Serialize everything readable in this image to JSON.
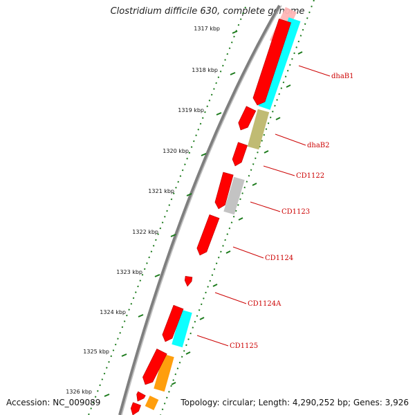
{
  "title": "Clostridium difficile 630, complete genome",
  "footer": {
    "accession": "Accession: NC_009089",
    "topology": "Topology: circular; Length: 4,290,252 bp; Genes: 3,926"
  },
  "colors": {
    "backbone": "#7f7f7f",
    "ticks": "#1b7a1b",
    "label": "#cc0000",
    "red": "#ff0000",
    "cyan": "#00ffff",
    "olive": "#bdb76b",
    "gray": "#c0c0c0",
    "orange": "#ff9900",
    "pink": "#ffb6b6"
  },
  "scale": {
    "unit": "kbp",
    "labels": [
      "1317 kbp",
      "1318 kbp",
      "1319 kbp",
      "1320 kbp",
      "1321 kbp",
      "1322 kbp",
      "1323 kbp",
      "1324 kbp",
      "1325 kbp",
      "1326 kbp"
    ]
  },
  "genes": [
    {
      "name": "dhaB1",
      "color": "cyan"
    },
    {
      "name": "dhaB2",
      "color": "olive"
    },
    {
      "name": "CD1122",
      "color": "red"
    },
    {
      "name": "CD1123",
      "color": "gray"
    },
    {
      "name": "CD1124",
      "color": "red"
    },
    {
      "name": "CD1124A",
      "color": "red"
    },
    {
      "name": "CD1125",
      "color": "cyan"
    }
  ]
}
